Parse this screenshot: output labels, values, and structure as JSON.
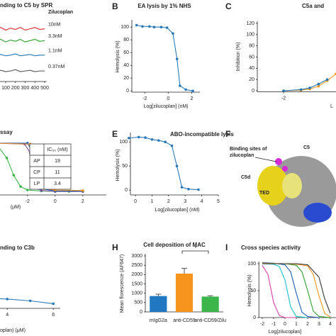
{
  "chart_data": [
    {
      "type": "line",
      "title": "nding to C5 by SPR",
      "legend_title": "Zilucoplan",
      "xlim": [
        0,
        520
      ],
      "ylim": [
        0,
        5
      ],
      "xticks": [
        100,
        200,
        300,
        400,
        500
      ],
      "series": [
        {
          "name": "10nM",
          "color": "#d62728",
          "x": [
            0,
            50,
            100,
            150,
            200,
            250,
            300,
            350,
            400,
            450,
            500
          ],
          "values": [
            4.0,
            4.1,
            3.9,
            4.05,
            3.95,
            4.1,
            3.9,
            4.0,
            4.1,
            3.95,
            4.0
          ]
        },
        {
          "name": "3.3nM",
          "color": "#2ca02c",
          "x": [
            0,
            50,
            100,
            150,
            200,
            250,
            300,
            350,
            400,
            450,
            500
          ],
          "values": [
            3.1,
            3.2,
            3.0,
            3.15,
            3.05,
            3.2,
            3.0,
            3.1,
            3.2,
            3.05,
            3.1
          ]
        },
        {
          "name": "1.1nM",
          "color": "#1f77b4",
          "x": [
            0,
            50,
            100,
            150,
            200,
            250,
            300,
            350,
            400,
            450,
            500
          ],
          "values": [
            2.0,
            2.05,
            1.95,
            2.0,
            2.1,
            1.95,
            2.0,
            2.05,
            1.95,
            2.0,
            2.0
          ]
        },
        {
          "name": "0.37nM",
          "color": "#555555",
          "x": [
            0,
            50,
            100,
            150,
            200,
            250,
            300,
            350,
            400,
            450,
            500
          ],
          "values": [
            0.8,
            0.85,
            0.75,
            0.8,
            0.9,
            0.75,
            0.8,
            0.85,
            0.75,
            0.8,
            0.8
          ]
        }
      ]
    },
    {
      "type": "line",
      "label": "B",
      "title": "EA lysis by 1% NHS",
      "xlabel": "Log[zilucoplan] (nM)",
      "ylabel": "Hemolysis (%)",
      "xlim": [
        -3.1,
        2.7
      ],
      "ylim": [
        -2,
        108
      ],
      "xticks": [
        -2,
        0,
        2
      ],
      "yticks": [
        0,
        20,
        40,
        60,
        80,
        100
      ],
      "markers": true,
      "series": [
        {
          "color": "#2a7ab8",
          "x": [
            -2.7,
            -2.2,
            -1.6,
            -1.2,
            -0.6,
            -0.1,
            0.4,
            0.75,
            1.0,
            1.5,
            2.1
          ],
          "values": [
            103,
            101,
            101,
            100,
            100,
            99,
            90,
            50,
            8,
            2,
            0
          ]
        }
      ]
    },
    {
      "type": "line",
      "label": "C",
      "title": "C5a and",
      "xlabel": "L",
      "ylabel": "Inhibition (%)",
      "xlim": [
        -3.5,
        1.0
      ],
      "ylim": [
        -2,
        120
      ],
      "xticks": [
        -2
      ],
      "yticks": [
        0,
        20,
        40,
        60,
        80,
        100,
        120
      ],
      "markers": true,
      "series": [
        {
          "color": "#f7941d",
          "x": [
            -2,
            -1,
            -0.5,
            0,
            0.5,
            1
          ],
          "values": [
            0,
            1,
            3,
            8,
            18,
            30
          ]
        },
        {
          "color": "#1f77b4",
          "x": [
            -2,
            -1,
            -0.5,
            0,
            0.5
          ],
          "values": [
            0,
            2,
            5,
            12,
            20
          ]
        }
      ]
    },
    {
      "type": "line",
      "title": "ssay",
      "xlabel": "(μM)",
      "xlim": [
        -4.5,
        3.7
      ],
      "ylim": [
        -5,
        110
      ],
      "xticks": [
        -2,
        0,
        2
      ],
      "markers": true,
      "table": {
        "header": "IC₅₀ (nM)",
        "rows": [
          [
            "AP",
            19
          ],
          [
            "CP",
            11
          ],
          [
            "LP",
            3.4
          ]
        ]
      },
      "series": [
        {
          "color": "#3cb54a",
          "x": [
            -4.3,
            -3.5,
            -3,
            -2.5,
            -2,
            -1,
            0,
            1,
            2
          ],
          "values": [
            100,
            70,
            35,
            12,
            5,
            3,
            2,
            2,
            2
          ]
        },
        {
          "color": "#7b4fa0",
          "x": [
            -4.3,
            -2.2,
            -1.8,
            -1.5,
            -1.2,
            -1,
            0,
            2
          ],
          "values": [
            100,
            98,
            80,
            30,
            8,
            4,
            2,
            2
          ]
        },
        {
          "color": "#1f5fb4",
          "x": [
            -4.3,
            -2,
            -1.7,
            -1.4,
            -1.1,
            0,
            2
          ],
          "values": [
            100,
            100,
            85,
            40,
            8,
            3,
            3
          ]
        },
        {
          "color": "#f7941d",
          "x": [
            -4.3,
            -1.8,
            -1.4,
            -1.1,
            -0.8,
            0,
            2
          ],
          "values": [
            100,
            98,
            75,
            35,
            8,
            5,
            4
          ]
        }
      ]
    },
    {
      "type": "line",
      "label": "E",
      "title": "ABO-incompatible lysis",
      "xlabel": "Log[zilucoplan] (nM)",
      "ylabel": "Hemolysis (%)",
      "xlim": [
        -0.3,
        5
      ],
      "ylim": [
        -10,
        115
      ],
      "xticks": [
        0,
        1,
        2,
        3,
        4,
        5
      ],
      "yticks": [
        0,
        50,
        100
      ],
      "markers": true,
      "series": [
        {
          "color": "#2a7ab8",
          "x": [
            -0.4,
            0.2,
            0.6,
            1.0,
            1.4,
            1.8,
            2.2,
            2.5,
            2.8,
            3.2,
            3.8
          ],
          "values": [
            108,
            110,
            109,
            105,
            103,
            100,
            92,
            50,
            6,
            2,
            1
          ]
        }
      ]
    },
    {
      "type": "image",
      "label": "F",
      "annotations": [
        "C5",
        "Binding sites of",
        "zilucoplan",
        "C5d",
        "TED"
      ]
    },
    {
      "type": "line",
      "title": "nding to C3b",
      "xlabel": "oplan) (μM)",
      "xlim": [
        3.38,
        6.3
      ],
      "ylim": [
        -1,
        10
      ],
      "xticks": [
        4,
        6
      ],
      "markers": true,
      "series": [
        {
          "color": "#2a7ab8",
          "x": [
            3,
            4,
            5,
            6
          ],
          "values": [
            0.8,
            0.6,
            0.3,
            -0.2
          ]
        }
      ]
    },
    {
      "type": "bar",
      "label": "H",
      "title": "Cell deposition of MAC",
      "ylabel": "Mean florescence (AF647)",
      "categories": [
        "mIgG2a",
        "anti-CD59",
        "anti-CD59/Zilu"
      ],
      "values": [
        850,
        2050,
        820
      ],
      "errors": [
        100,
        280,
        50
      ],
      "colors": [
        "#1f78c1",
        "#f7941d",
        "#3cb54a"
      ],
      "ylim": [
        0,
        3000
      ],
      "yticks": [
        0,
        500,
        1000,
        1500,
        2000,
        2500,
        3000
      ],
      "annotations": [
        "*"
      ]
    },
    {
      "type": "line",
      "label": "I",
      "title": "Cross species activity",
      "xlabel": "Log[zilucoplan]",
      "ylabel": "Hemolysis (%)",
      "xlim": [
        -2.3,
        4.5
      ],
      "ylim": [
        0,
        100
      ],
      "xticks": [
        -2,
        -1,
        0,
        1,
        2,
        3,
        4
      ],
      "yticks": [
        0,
        50,
        100
      ],
      "series": [
        {
          "color": "#d63aa8",
          "x": [
            -2,
            -1.5,
            -1,
            -0.5,
            0,
            1
          ],
          "values": [
            97,
            80,
            28,
            4,
            0,
            0
          ]
        },
        {
          "color": "#17becf",
          "x": [
            -2,
            -1,
            -0.5,
            0,
            0.5,
            1,
            2
          ],
          "values": [
            100,
            99,
            95,
            70,
            20,
            2,
            0
          ]
        },
        {
          "color": "#1f5fb4",
          "x": [
            -2,
            -1,
            0,
            0.5,
            1,
            1.5,
            2,
            3
          ],
          "values": [
            102,
            101,
            98,
            85,
            45,
            10,
            2,
            0
          ]
        },
        {
          "color": "#2ca02c",
          "x": [
            -2,
            0,
            1,
            1.5,
            2,
            2.5,
            3,
            4
          ],
          "values": [
            100,
            100,
            97,
            85,
            50,
            12,
            2,
            0
          ]
        },
        {
          "color": "#f7941d",
          "x": [
            -2,
            0,
            1,
            2,
            2.5,
            3,
            3.5,
            4
          ],
          "values": [
            101,
            100,
            99,
            96,
            80,
            40,
            8,
            1
          ]
        },
        {
          "color": "#333333",
          "x": [
            -2,
            0,
            1,
            2,
            3,
            3.5,
            4
          ],
          "values": [
            100,
            100,
            100,
            98,
            75,
            35,
            8
          ]
        }
      ]
    }
  ]
}
